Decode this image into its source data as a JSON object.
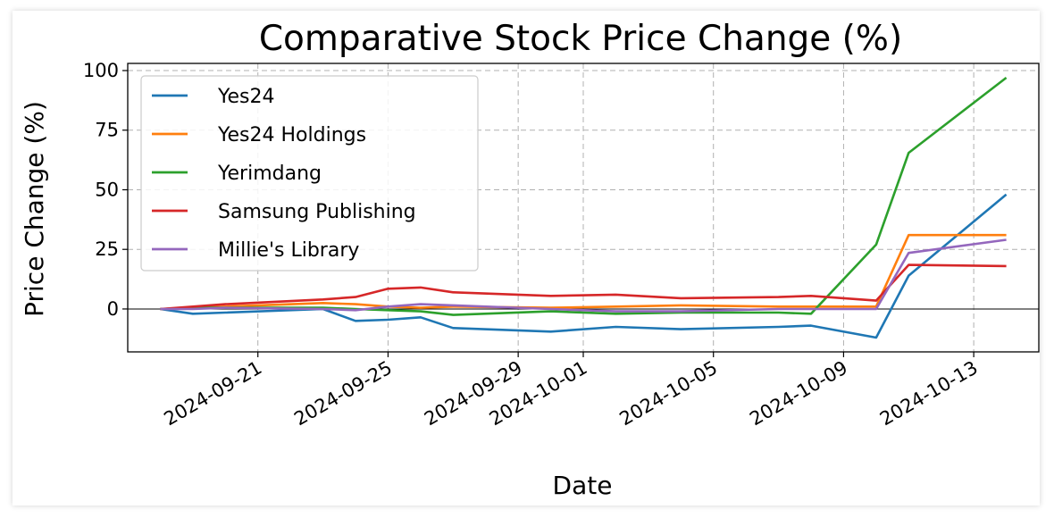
{
  "chart_data": {
    "type": "line",
    "title": "Comparative Stock Price Change (%)",
    "xlabel": "Date",
    "ylabel": "Price Change (%)",
    "xlim": [
      "2024-09-17",
      "2024-10-15"
    ],
    "ylim": [
      -18,
      103
    ],
    "x_ticks": [
      "2024-09-21",
      "2024-09-25",
      "2024-09-29",
      "2024-10-01",
      "2024-10-05",
      "2024-10-09",
      "2024-10-13"
    ],
    "y_ticks": [
      0,
      25,
      50,
      75,
      100
    ],
    "grid": true,
    "grid_style": "dashed",
    "zero_line": true,
    "legend_position": "upper-left",
    "x": [
      "2024-09-18",
      "2024-09-19",
      "2024-09-20",
      "2024-09-23",
      "2024-09-24",
      "2024-09-25",
      "2024-09-26",
      "2024-09-27",
      "2024-09-30",
      "2024-10-02",
      "2024-10-04",
      "2024-10-07",
      "2024-10-08",
      "2024-10-10",
      "2024-10-11",
      "2024-10-14"
    ],
    "series": [
      {
        "name": "Yes24",
        "color": "#1f77b4",
        "values": [
          0,
          -2,
          -1.5,
          0,
          -5,
          -4.5,
          -3.5,
          -8,
          -9.5,
          -7.5,
          -8.5,
          -7.5,
          -7,
          -12,
          14,
          48
        ]
      },
      {
        "name": "Yes24 Holdings",
        "color": "#ff7f0e",
        "values": [
          0,
          0.5,
          1,
          2.5,
          2,
          1,
          0.5,
          1,
          0.5,
          1,
          1.5,
          1,
          1,
          1,
          31,
          31
        ]
      },
      {
        "name": "Yerimdang",
        "color": "#2ca02c",
        "values": [
          0,
          0.5,
          0.5,
          0.5,
          0,
          -0.5,
          -1,
          -2.5,
          -1,
          -2,
          -1.5,
          -1.5,
          -2,
          27,
          65.5,
          97
        ]
      },
      {
        "name": "Samsung Publishing",
        "color": "#d62728",
        "values": [
          0,
          1,
          2,
          4,
          5,
          8.5,
          9,
          7,
          5.5,
          6,
          4.5,
          5,
          5.5,
          3.5,
          18.5,
          18
        ]
      },
      {
        "name": "Millie's Library",
        "color": "#9467bd",
        "values": [
          0,
          0,
          0.5,
          0,
          -0.5,
          1,
          2,
          1.5,
          0,
          -1,
          -1,
          0,
          0,
          0,
          23.5,
          29
        ]
      }
    ]
  }
}
